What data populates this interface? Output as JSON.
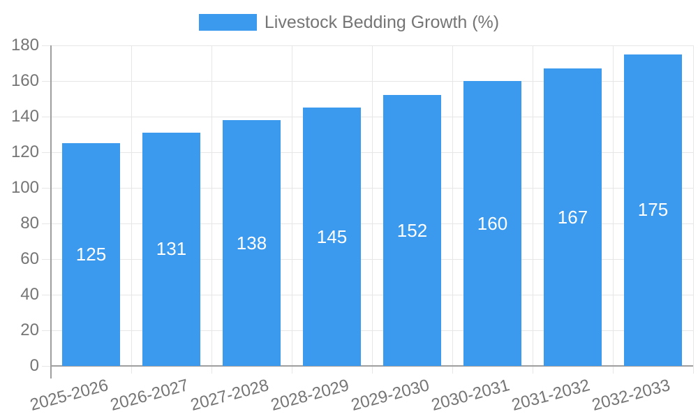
{
  "legend": {
    "label": "Livestock Bedding Growth (%)"
  },
  "chart_data": {
    "type": "bar",
    "title": "",
    "series_name": "Livestock Bedding Growth (%)",
    "categories": [
      "2025-2026",
      "2026-2027",
      "2027-2028",
      "2028-2029",
      "2029-2030",
      "2030-2031",
      "2031-2032",
      "2032-2033"
    ],
    "values": [
      125,
      131,
      138,
      145,
      152,
      160,
      167,
      175
    ],
    "xlabel": "",
    "ylabel": "",
    "ylim": [
      0,
      180
    ],
    "ytick_step": 20,
    "yticks": [
      0,
      20,
      40,
      60,
      80,
      100,
      120,
      140,
      160,
      180
    ],
    "grid": true,
    "legend_position": "top",
    "x_label_rotation": -15,
    "colors": {
      "bar": "#3B9AEE",
      "bar_label": "#ffffff",
      "axis_text": "#757575",
      "grid": "#e6e6e6",
      "axis_line": "#9e9e9e",
      "background": "#ffffff"
    }
  }
}
